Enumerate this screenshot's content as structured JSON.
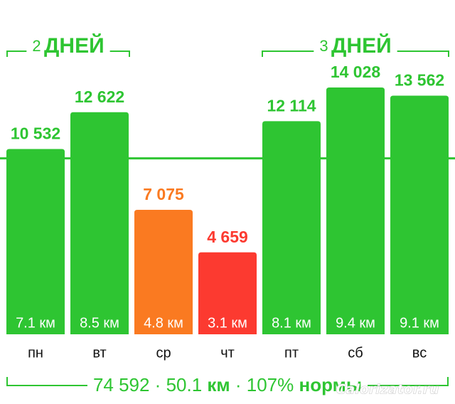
{
  "chart_data": {
    "type": "bar",
    "categories": [
      "пн",
      "вт",
      "ср",
      "чт",
      "пт",
      "сб",
      "вс"
    ],
    "values": [
      10532,
      12622,
      7075,
      4659,
      12114,
      14028,
      13562
    ],
    "value_labels": [
      "10 532",
      "12 622",
      "7 075",
      "4 659",
      "12 114",
      "14 028",
      "13 562"
    ],
    "colors": [
      "#2ec532",
      "#2ec532",
      "#fa7a21",
      "#fc3a30",
      "#2ec532",
      "#2ec532",
      "#2ec532"
    ],
    "distances": [
      "7.1 км",
      "8.5 км",
      "4.8 км",
      "3.1 км",
      "8.1 км",
      "9.4 км",
      "9.1 км"
    ],
    "target_line": 10000,
    "ylim": [
      0,
      19000
    ],
    "groups": [
      {
        "count": 2,
        "unit": "ДНЕЙ"
      },
      {
        "count": 3,
        "unit": "ДНЕЙ"
      }
    ],
    "summary": [
      "74 592 · 50.1 ",
      "км",
      " · 107% ",
      "нормы"
    ],
    "watermark": "Calorizator.ru"
  }
}
